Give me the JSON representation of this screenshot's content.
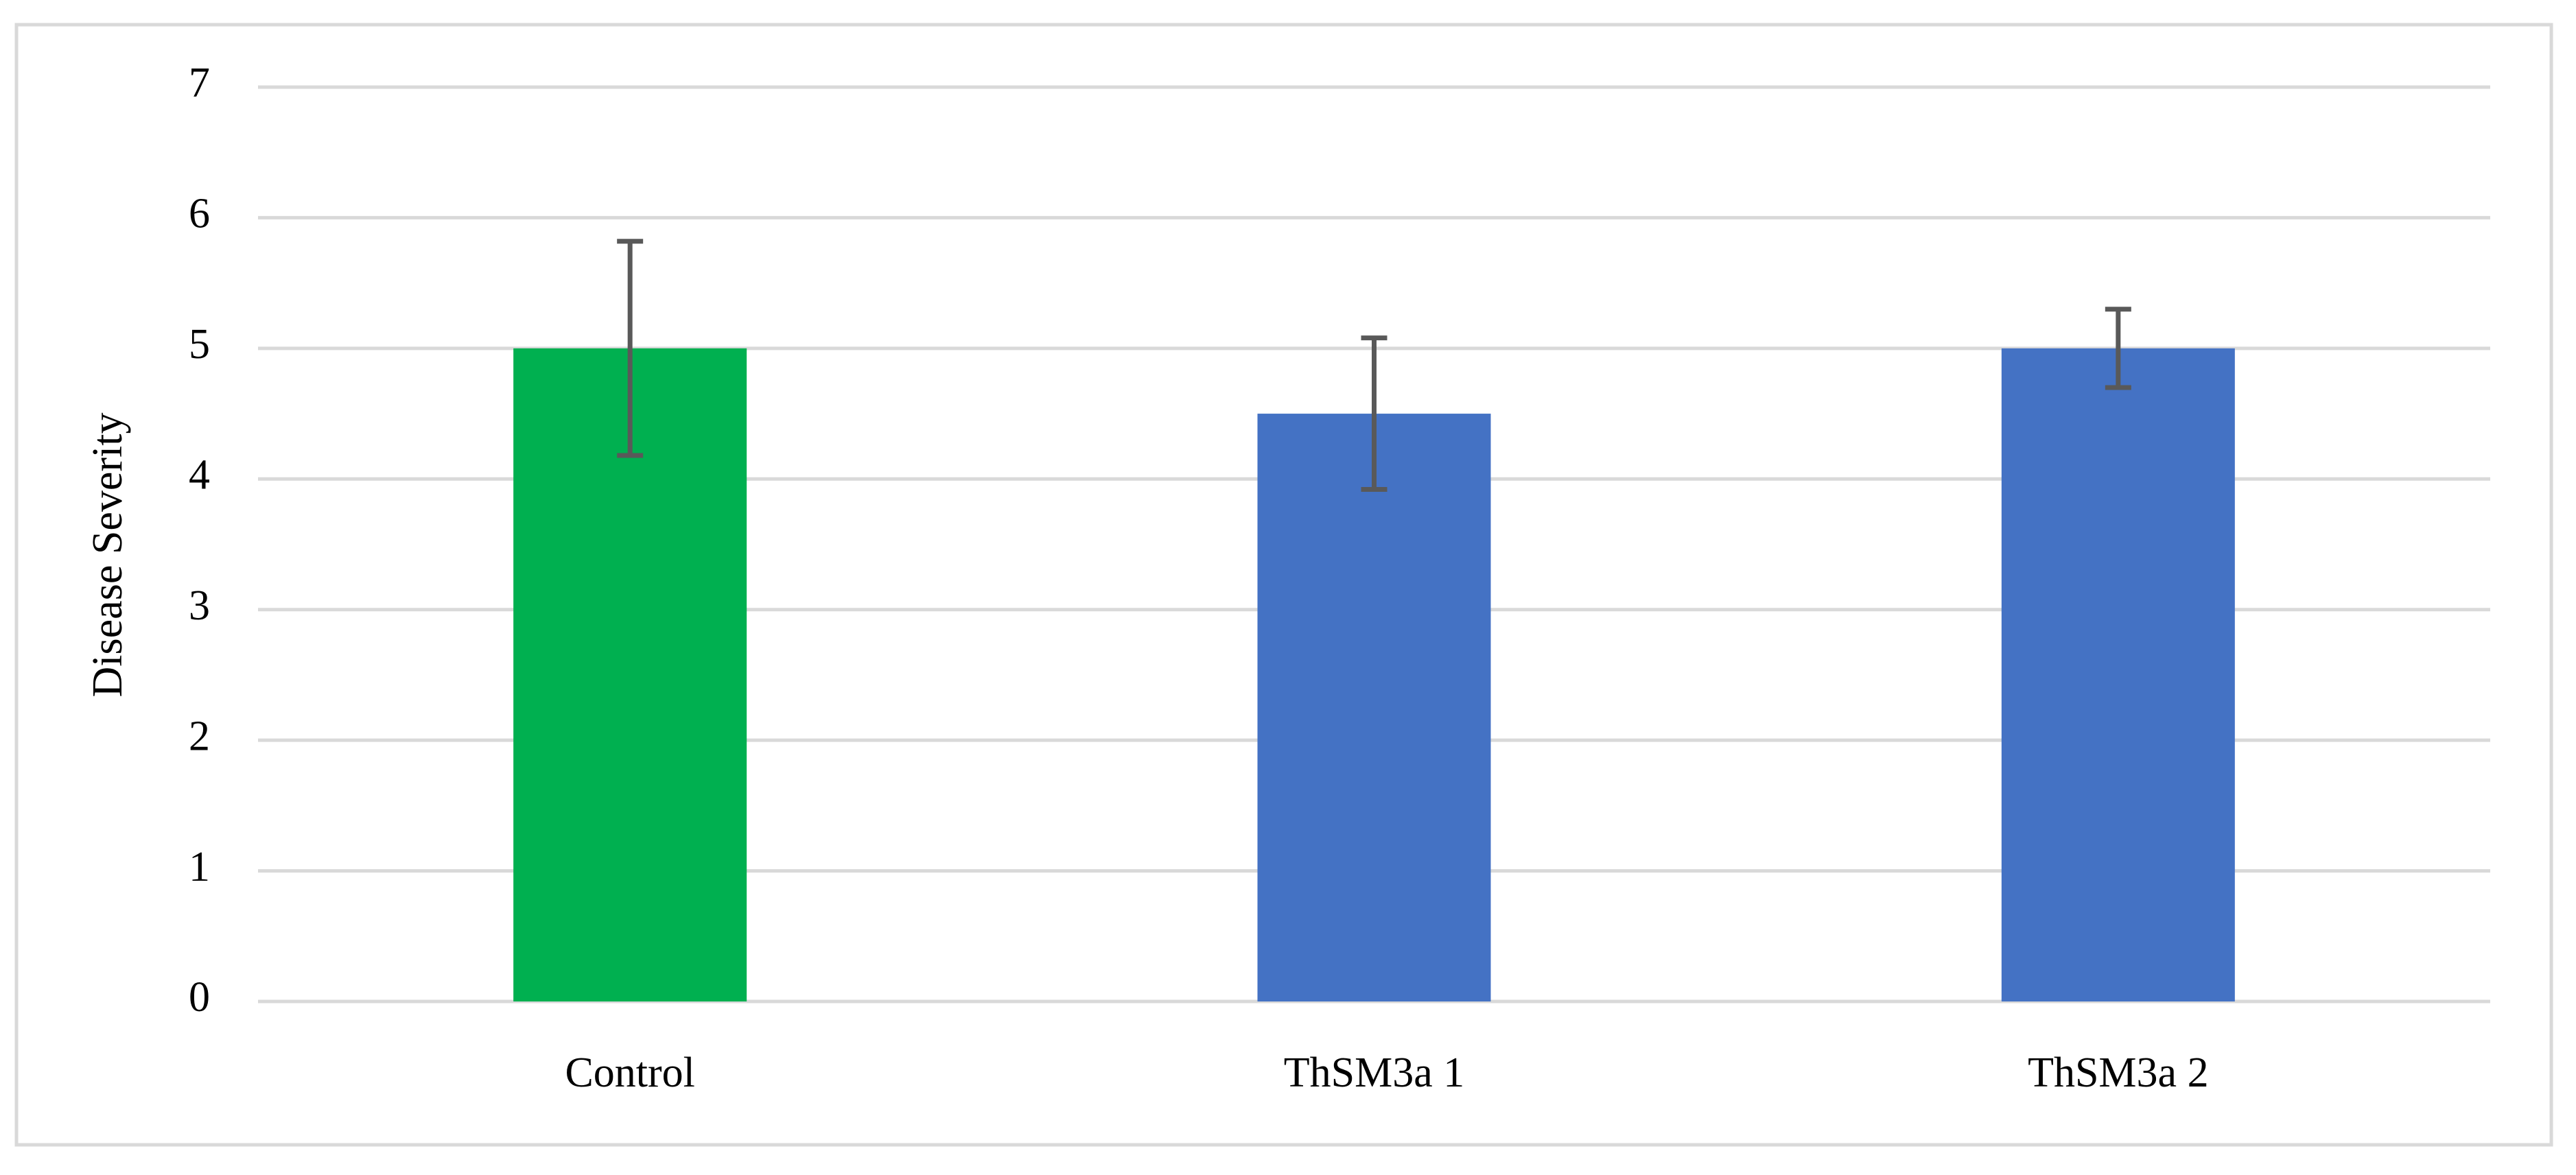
{
  "chart_data": {
    "type": "bar",
    "y_label": "Disease Severity",
    "categories": [
      "Control",
      "ThSM3a 1",
      "ThSM3a 2"
    ],
    "values": [
      5,
      4.5,
      5
    ],
    "errors": [
      0.82,
      0.58,
      0.3
    ],
    "colors": [
      "#00b050",
      "#4472c4",
      "#4472c4"
    ],
    "ylim": [
      0,
      7
    ],
    "yticks": [
      0,
      1,
      2,
      3,
      4,
      5,
      6,
      7
    ],
    "grid": true
  }
}
